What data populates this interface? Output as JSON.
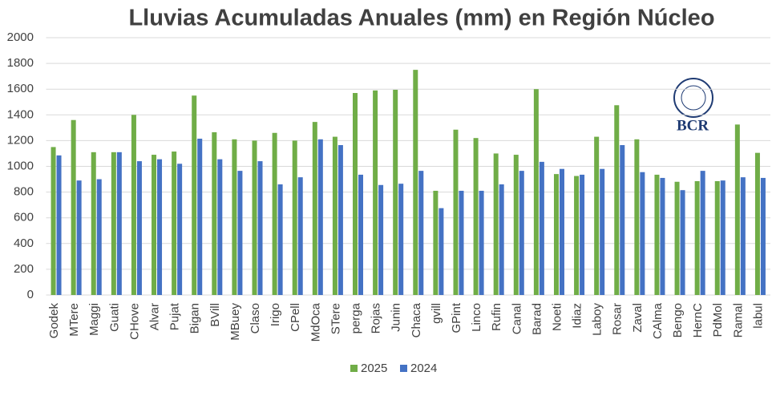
{
  "chart_data": {
    "type": "bar",
    "title": "Lluvias Acumuladas Anuales (mm)  en Región Núcleo",
    "logo": "BCR",
    "categories": [
      "Godek",
      "MTere",
      "Maggi",
      "Guati",
      "CHove",
      "Alvar",
      "Pujat",
      "Bigan",
      "BVill",
      "MBuey",
      "Claso",
      "Irigo",
      "CPell",
      "MdOca",
      "STere",
      "perga",
      "Rojas",
      "Junin",
      "Chaca",
      "gvill",
      "GPint",
      "Linco",
      "Rufin",
      "Canal",
      "Barad",
      "Noeti",
      "Idiaz",
      "Laboy",
      "Rosar",
      "Zaval",
      "CAlma",
      "Bengo",
      "HernC",
      "PdMol",
      "Ramal",
      "labul"
    ],
    "series": [
      {
        "name": "2025",
        "color": "#70ad47",
        "values": [
          1150,
          1360,
          1110,
          1110,
          1400,
          1090,
          1115,
          1550,
          1265,
          1210,
          1200,
          1260,
          1200,
          1345,
          1230,
          1570,
          1590,
          1595,
          1750,
          810,
          1285,
          1220,
          1100,
          1090,
          1600,
          940,
          925,
          1230,
          1475,
          1210,
          935,
          880,
          885,
          885,
          1325,
          1105
        ]
      },
      {
        "name": "2024",
        "color": "#4472c4",
        "values": [
          1085,
          890,
          900,
          1110,
          1040,
          1055,
          1020,
          1215,
          1055,
          965,
          1040,
          860,
          915,
          1210,
          1165,
          935,
          855,
          865,
          965,
          675,
          810,
          810,
          860,
          965,
          1035,
          980,
          935,
          980,
          1165,
          955,
          910,
          815,
          965,
          890,
          915,
          910
        ]
      }
    ],
    "ylim": [
      0,
      2000
    ],
    "yticks": [
      0,
      200,
      400,
      600,
      800,
      1000,
      1200,
      1400,
      1600,
      1800,
      2000
    ],
    "grid": true
  }
}
